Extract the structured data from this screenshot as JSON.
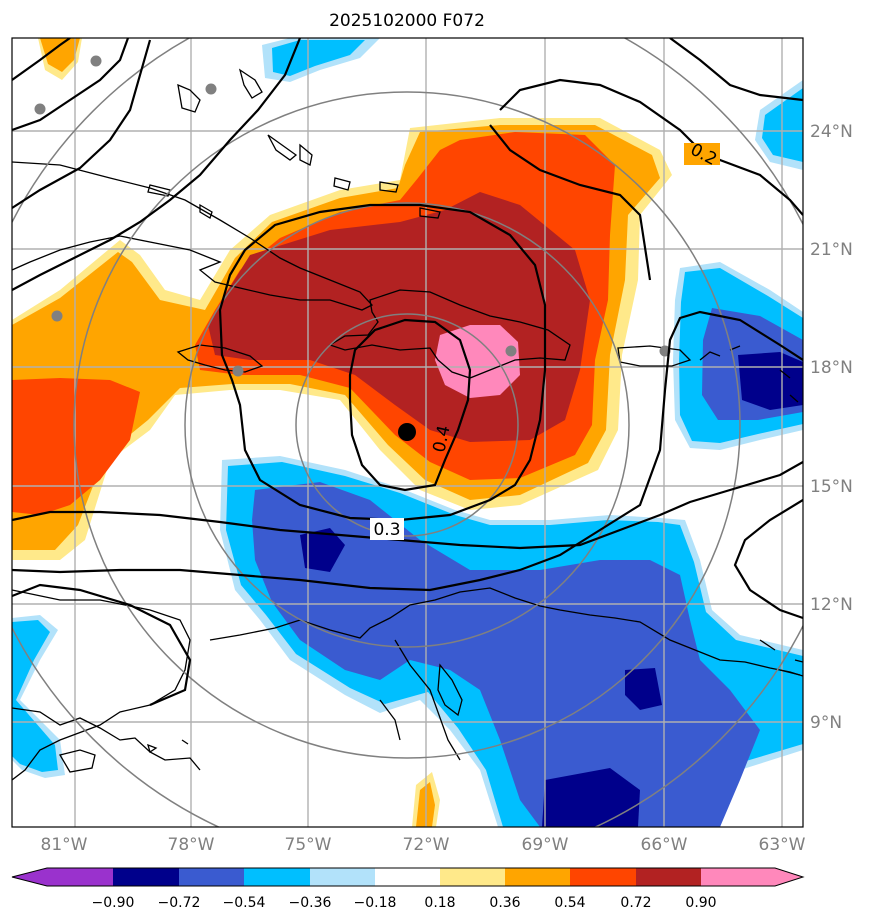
{
  "title": "2025102000 F072",
  "lon_ticks": [
    "81°W",
    "78°W",
    "75°W",
    "72°W",
    "69°W",
    "66°W",
    "63°W"
  ],
  "lat_ticks": [
    "24°N",
    "21°N",
    "18°N",
    "15°N",
    "12°N",
    "9°N"
  ],
  "contour_labels": [
    "0.2",
    "0.3",
    "0.4"
  ],
  "colorbar": {
    "ticks": [
      "−0.90",
      "−0.72",
      "−0.54",
      "−0.36",
      "−0.18",
      "0.18",
      "0.36",
      "0.54",
      "0.72",
      "0.90"
    ],
    "colors": [
      "#9a32cd",
      "#00008b",
      "#3a5bd0",
      "#00bfff",
      "#b2e2fa",
      "#ffffff",
      "#ffe98a",
      "#ffa500",
      "#ff4500",
      "#b22222",
      "#ff88bb"
    ]
  },
  "palette": {
    "neg_deep": "#00008b",
    "neg_mid": "#3a5bd0",
    "neg_light": "#00bfff",
    "neg_pale": "#b2e2fa",
    "pos_pale": "#ffe98a",
    "pos_orange": "#ffa500",
    "pos_red": "#ff4500",
    "pos_dark": "#b22222",
    "pos_pink": "#ff88bb",
    "grid": "#b0b0b0",
    "rings": "#808080",
    "contour": "#000000"
  }
}
